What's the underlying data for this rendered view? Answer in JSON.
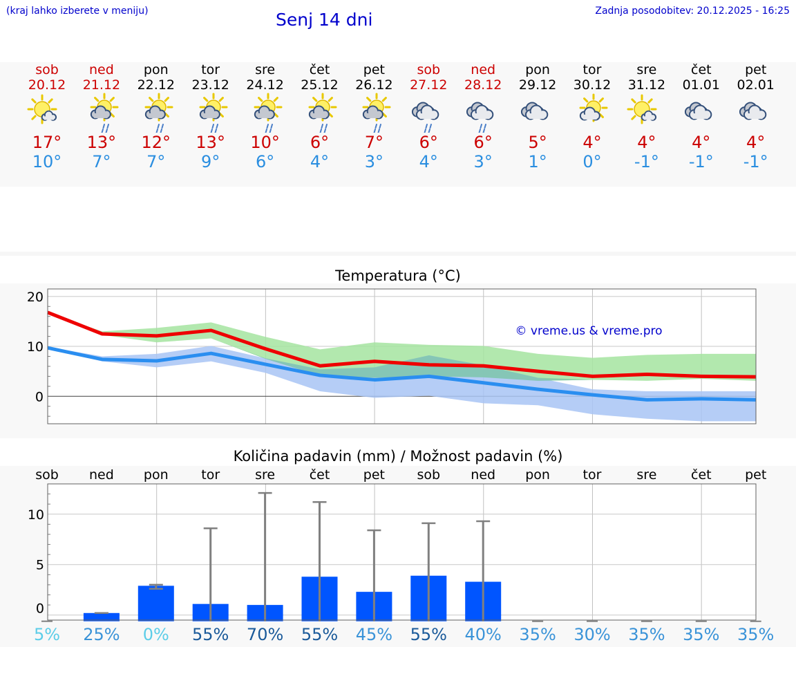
{
  "header": {
    "hint": "(kraj lahko izberete v meniju)",
    "title": "Senj 14 dni",
    "updated": "Zadnja posodobitev: 20.12.2025 - 16:25"
  },
  "days": [
    {
      "name": "sob",
      "date": "20.12",
      "weekend": true,
      "icon": "sun-small-cloud-icon",
      "tmax": "17°",
      "tmin": "10°"
    },
    {
      "name": "ned",
      "date": "21.12",
      "weekend": true,
      "icon": "sun-cloud-rain-icon",
      "tmax": "13°",
      "tmin": "7°"
    },
    {
      "name": "pon",
      "date": "22.12",
      "weekend": false,
      "icon": "sun-cloud-rain-icon",
      "tmax": "12°",
      "tmin": "7°"
    },
    {
      "name": "tor",
      "date": "23.12",
      "weekend": false,
      "icon": "sun-cloud-rain-icon",
      "tmax": "13°",
      "tmin": "9°"
    },
    {
      "name": "sre",
      "date": "24.12",
      "weekend": false,
      "icon": "sun-cloud-rain-icon",
      "tmax": "10°",
      "tmin": "6°"
    },
    {
      "name": "čet",
      "date": "25.12",
      "weekend": false,
      "icon": "sun-cloud-rain-icon",
      "tmax": "6°",
      "tmin": "4°"
    },
    {
      "name": "pet",
      "date": "26.12",
      "weekend": false,
      "icon": "sun-cloud-rain-icon",
      "tmax": "7°",
      "tmin": "3°"
    },
    {
      "name": "sob",
      "date": "27.12",
      "weekend": true,
      "icon": "cloud-rain-icon",
      "tmax": "6°",
      "tmin": "4°"
    },
    {
      "name": "ned",
      "date": "28.12",
      "weekend": true,
      "icon": "cloud-rain-icon",
      "tmax": "6°",
      "tmin": "3°"
    },
    {
      "name": "pon",
      "date": "29.12",
      "weekend": false,
      "icon": "cloud-icon",
      "tmax": "5°",
      "tmin": "1°"
    },
    {
      "name": "tor",
      "date": "30.12",
      "weekend": false,
      "icon": "sun-cloud-icon",
      "tmax": "4°",
      "tmin": "0°"
    },
    {
      "name": "sre",
      "date": "31.12",
      "weekend": false,
      "icon": "sun-small-cloud-icon",
      "tmax": "4°",
      "tmin": "-1°"
    },
    {
      "name": "čet",
      "date": "01.01",
      "weekend": false,
      "icon": "cloud-icon",
      "tmax": "4°",
      "tmin": "-1°"
    },
    {
      "name": "pet",
      "date": "02.01",
      "weekend": false,
      "icon": "cloud-icon",
      "tmax": "4°",
      "tmin": "-1°"
    }
  ],
  "colors": {
    "max_line": "#ee0000",
    "min_line": "#2a8ef0",
    "max_band": "#a4e4a0",
    "min_band": "#a8c4f4",
    "bar": "#0055ff",
    "whisker": "#808080",
    "weekend": "#cc0000",
    "link": "#0000cc"
  },
  "chart_data": [
    {
      "type": "line",
      "title": "Temperatura (°C)",
      "watermark": "© vreme.us & vreme.pro",
      "ylim": [
        -5.5,
        21.5
      ],
      "yticks": [
        0,
        10,
        20
      ],
      "x": [
        0,
        1,
        2,
        3,
        4,
        5,
        6,
        7,
        8,
        9,
        10,
        11,
        12,
        13
      ],
      "series": [
        {
          "name": "max",
          "values": [
            16.8,
            12.5,
            12.1,
            13.2,
            9.5,
            6.1,
            7.0,
            6.3,
            6.1,
            5.0,
            4.0,
            4.4,
            4.0,
            3.9
          ],
          "band_high": [
            16.8,
            13.0,
            13.7,
            14.8,
            11.9,
            9.4,
            10.8,
            10.3,
            10.1,
            8.5,
            7.7,
            8.3,
            8.5,
            8.5
          ],
          "band_low": [
            16.8,
            12.3,
            10.8,
            11.6,
            7.5,
            4.1,
            3.7,
            4.0,
            3.8,
            3.1,
            3.3,
            3.1,
            3.5,
            3.1
          ]
        },
        {
          "name": "min",
          "values": [
            9.7,
            7.4,
            7.1,
            8.6,
            6.4,
            4.2,
            3.3,
            4.0,
            2.7,
            1.4,
            0.3,
            -0.7,
            -0.5,
            -0.7
          ],
          "band_high": [
            9.9,
            8.0,
            8.5,
            10.1,
            7.6,
            5.4,
            5.8,
            8.2,
            6.2,
            3.7,
            1.4,
            1.0,
            1.0,
            1.0
          ],
          "band_low": [
            9.5,
            7.0,
            5.8,
            7.0,
            4.7,
            1.0,
            -0.3,
            0.1,
            -1.4,
            -1.8,
            -3.6,
            -4.5,
            -5.0,
            -5.0
          ]
        }
      ]
    },
    {
      "type": "bar",
      "title": "Količina padavin (mm) / Možnost padavin (%)",
      "categories": [
        "sob",
        "ned",
        "pon",
        "tor",
        "sre",
        "čet",
        "pet",
        "sob",
        "ned",
        "pon",
        "tor",
        "sre",
        "čet",
        "pet"
      ],
      "ylim": [
        -0.5,
        13
      ],
      "yticks": [
        0,
        5,
        10
      ],
      "values": [
        0,
        0.2,
        2.9,
        1.1,
        1.0,
        3.8,
        2.3,
        3.9,
        3.3,
        0,
        0,
        0,
        0,
        0
      ],
      "whisker_high": [
        0,
        0.2,
        3.0,
        8.6,
        12.1,
        11.2,
        8.4,
        9.1,
        9.3,
        0,
        0,
        0,
        0,
        0
      ],
      "whisker_low": [
        0,
        0.2,
        2.6,
        0,
        0,
        0,
        0,
        0,
        0,
        0,
        0,
        0,
        0,
        0
      ],
      "probability": [
        {
          "label": "5%",
          "color": "#5ccde8"
        },
        {
          "label": "25%",
          "color": "#3a93d8"
        },
        {
          "label": "0%",
          "color": "#5ccde8"
        },
        {
          "label": "55%",
          "color": "#1a5a9a"
        },
        {
          "label": "70%",
          "color": "#1a5a9a"
        },
        {
          "label": "55%",
          "color": "#1a5a9a"
        },
        {
          "label": "45%",
          "color": "#3a93d8"
        },
        {
          "label": "55%",
          "color": "#1a5a9a"
        },
        {
          "label": "40%",
          "color": "#3a93d8"
        },
        {
          "label": "35%",
          "color": "#3a93d8"
        },
        {
          "label": "30%",
          "color": "#3a93d8"
        },
        {
          "label": "35%",
          "color": "#3a93d8"
        },
        {
          "label": "35%",
          "color": "#3a93d8"
        },
        {
          "label": "35%",
          "color": "#3a93d8"
        }
      ]
    }
  ]
}
